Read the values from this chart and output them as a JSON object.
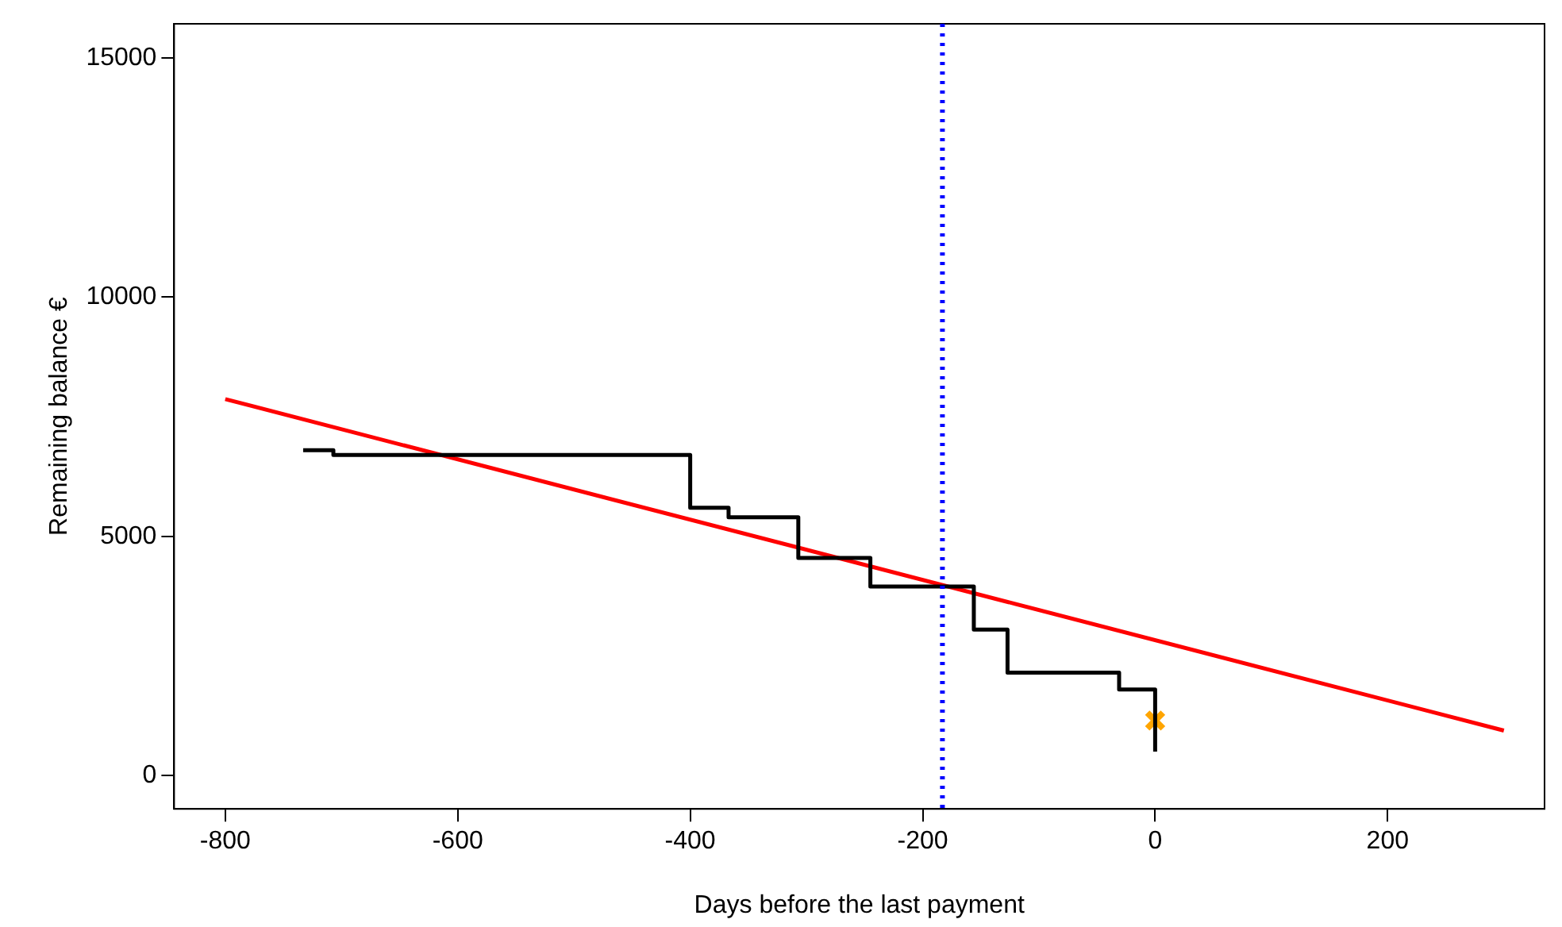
{
  "chart_data": {
    "type": "line",
    "xlabel": "Days before the last payment",
    "ylabel": "Remaining balance €",
    "xlim": [
      -844,
      335
    ],
    "ylim": [
      -697,
      15714
    ],
    "xticks": [
      -800,
      -600,
      -400,
      -200,
      0,
      200
    ],
    "yticks": [
      0,
      5000,
      10000,
      15000
    ],
    "grid": false,
    "legend": false,
    "series": [
      {
        "type": "step",
        "color": "#000000",
        "marker": "none",
        "x": [
          -733,
          -707,
          -400,
          -367,
          -307,
          -245,
          -156,
          -127,
          -31,
          0
        ],
        "values": [
          6800,
          6700,
          5600,
          5400,
          4550,
          3950,
          3050,
          2150,
          1800,
          500
        ]
      },
      {
        "type": "line",
        "color": "#ff0000",
        "marker": "none",
        "x": [
          -800,
          300
        ],
        "values": [
          7870,
          940
        ]
      },
      {
        "type": "scatter",
        "color": "#ffa500",
        "marker": "cross",
        "x": [
          0
        ],
        "values": [
          1150
        ]
      }
    ],
    "ref_lines": [
      {
        "axis": "x",
        "value": -183,
        "color": "#0000ff",
        "line_style": "dotted"
      }
    ]
  }
}
